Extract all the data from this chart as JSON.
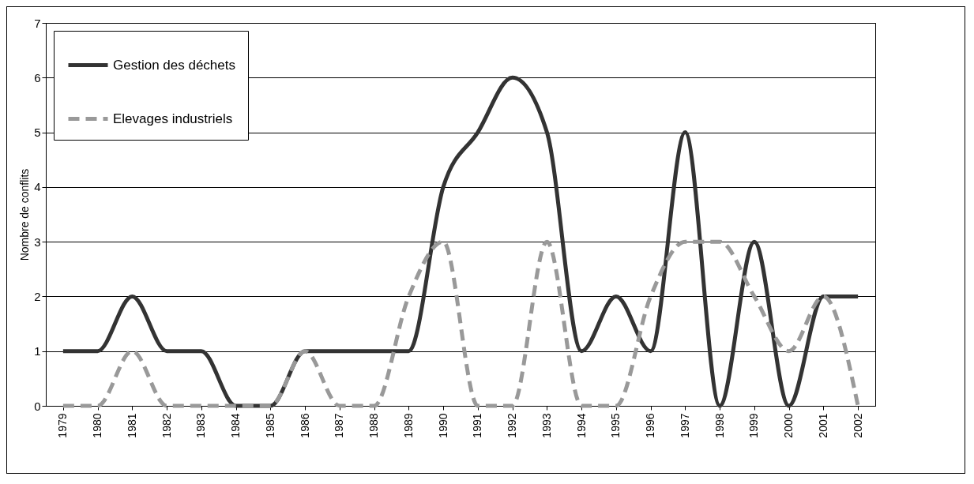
{
  "chart_data": {
    "type": "line",
    "ylabel": "Nombre de conflits",
    "categories": [
      "1979",
      "1980",
      "1981",
      "1982",
      "1983",
      "1984",
      "1985",
      "1986",
      "1987",
      "1988",
      "1989",
      "1990",
      "1991",
      "1992",
      "1993",
      "1994",
      "1995",
      "1996",
      "1997",
      "1998",
      "1999",
      "2000",
      "2001",
      "2002"
    ],
    "series": [
      {
        "name": "Gestion des déchets",
        "color": "#333333",
        "line_style": "solid",
        "values": [
          1,
          1,
          2,
          1,
          1,
          0,
          0,
          1,
          1,
          1,
          1,
          4,
          5,
          6,
          5,
          1,
          2,
          1,
          5,
          0,
          3,
          0,
          2,
          2
        ]
      },
      {
        "name": "Elevages industriels",
        "color": "#999999",
        "line_style": "dashed",
        "values": [
          0,
          0,
          1,
          0,
          0,
          0,
          0,
          1,
          0,
          0,
          2,
          3,
          0,
          0,
          3,
          0,
          0,
          2,
          3,
          3,
          2,
          1,
          2,
          0
        ]
      }
    ],
    "ylim": [
      0,
      7
    ],
    "yticks": [
      0,
      1,
      2,
      3,
      4,
      5,
      6,
      7
    ],
    "grid": "y",
    "legend": "top left",
    "marker": "none"
  }
}
